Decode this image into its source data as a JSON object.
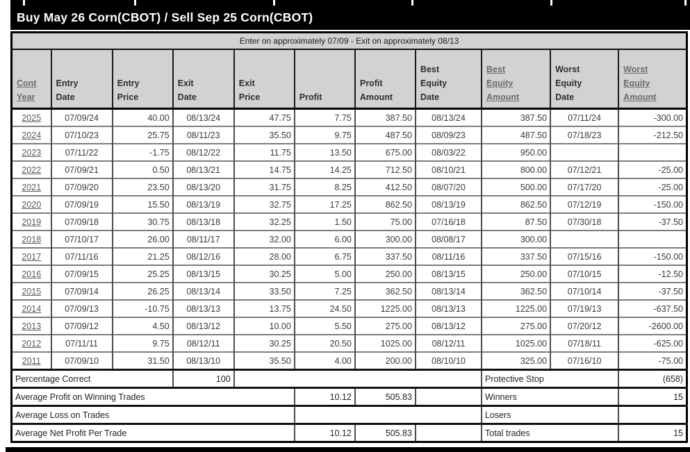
{
  "title": "Buy May 26 Corn(CBOT) / Sell Sep 25 Corn(CBOT)",
  "subtitle": "Enter on approximately 07/09 - Exit on approximately 08/13",
  "colors": {
    "title_bg": "#000000",
    "title_text": "#ffffff",
    "header_bg": "#d2d2d2",
    "link_text": "#6b6b6b",
    "cell_text": "#333333"
  },
  "table": {
    "columns": [
      {
        "id": "cont-year",
        "lines": [
          "Cont",
          "Year"
        ],
        "underlined": true
      },
      {
        "id": "entry-date",
        "lines": [
          "Entry",
          "Date"
        ],
        "underlined": false
      },
      {
        "id": "entry-price",
        "lines": [
          "Entry",
          "Price"
        ],
        "underlined": false
      },
      {
        "id": "exit-date",
        "lines": [
          "Exit",
          "Date"
        ],
        "underlined": false
      },
      {
        "id": "exit-price",
        "lines": [
          "Exit",
          "Price"
        ],
        "underlined": false
      },
      {
        "id": "profit",
        "lines": [
          "Profit"
        ],
        "underlined": false
      },
      {
        "id": "profit-amount",
        "lines": [
          "Profit",
          "Amount"
        ],
        "underlined": false
      },
      {
        "id": "best-equity-date",
        "lines": [
          "Best",
          "Equity",
          "Date"
        ],
        "underlined": false
      },
      {
        "id": "best-equity-amount",
        "lines": [
          "Best",
          "Equity",
          "Amount"
        ],
        "underlined": true
      },
      {
        "id": "worst-equity-date",
        "lines": [
          "Worst",
          "Equity",
          "Date"
        ],
        "underlined": false
      },
      {
        "id": "worst-equity-amount",
        "lines": [
          "Worst",
          "Equity",
          "Amount"
        ],
        "underlined": true
      }
    ],
    "rows": [
      {
        "year": "2025",
        "entry_date": "07/09/24",
        "entry_price": "40.00",
        "exit_date": "08/13/24",
        "exit_price": "47.75",
        "profit": "7.75",
        "profit_amount": "387.50",
        "best_equity_date": "08/13/24",
        "best_equity_amount": "387.50",
        "worst_equity_date": "07/11/24",
        "worst_equity_amount": "-300.00"
      },
      {
        "year": "2024",
        "entry_date": "07/10/23",
        "entry_price": "25.75",
        "exit_date": "08/11/23",
        "exit_price": "35.50",
        "profit": "9.75",
        "profit_amount": "487.50",
        "best_equity_date": "08/09/23",
        "best_equity_amount": "487.50",
        "worst_equity_date": "07/18/23",
        "worst_equity_amount": "-212.50"
      },
      {
        "year": "2023",
        "entry_date": "07/11/22",
        "entry_price": "-1.75",
        "exit_date": "08/12/22",
        "exit_price": "11.75",
        "profit": "13.50",
        "profit_amount": "675.00",
        "best_equity_date": "08/03/22",
        "best_equity_amount": "950.00",
        "worst_equity_date": "",
        "worst_equity_amount": ""
      },
      {
        "year": "2022",
        "entry_date": "07/09/21",
        "entry_price": "0.50",
        "exit_date": "08/13/21",
        "exit_price": "14.75",
        "profit": "14.25",
        "profit_amount": "712.50",
        "best_equity_date": "08/10/21",
        "best_equity_amount": "800.00",
        "worst_equity_date": "07/12/21",
        "worst_equity_amount": "-25.00"
      },
      {
        "year": "2021",
        "entry_date": "07/09/20",
        "entry_price": "23.50",
        "exit_date": "08/13/20",
        "exit_price": "31.75",
        "profit": "8.25",
        "profit_amount": "412.50",
        "best_equity_date": "08/07/20",
        "best_equity_amount": "500.00",
        "worst_equity_date": "07/17/20",
        "worst_equity_amount": "-25.00"
      },
      {
        "year": "2020",
        "entry_date": "07/09/19",
        "entry_price": "15.50",
        "exit_date": "08/13/19",
        "exit_price": "32.75",
        "profit": "17.25",
        "profit_amount": "862.50",
        "best_equity_date": "08/13/19",
        "best_equity_amount": "862.50",
        "worst_equity_date": "07/12/19",
        "worst_equity_amount": "-150.00"
      },
      {
        "year": "2019",
        "entry_date": "07/09/18",
        "entry_price": "30.75",
        "exit_date": "08/13/18",
        "exit_price": "32.25",
        "profit": "1.50",
        "profit_amount": "75.00",
        "best_equity_date": "07/16/18",
        "best_equity_amount": "87.50",
        "worst_equity_date": "07/30/18",
        "worst_equity_amount": "-37.50"
      },
      {
        "year": "2018",
        "entry_date": "07/10/17",
        "entry_price": "26.00",
        "exit_date": "08/11/17",
        "exit_price": "32.00",
        "profit": "6.00",
        "profit_amount": "300.00",
        "best_equity_date": "08/08/17",
        "best_equity_amount": "300.00",
        "worst_equity_date": "",
        "worst_equity_amount": ""
      },
      {
        "year": "2017",
        "entry_date": "07/11/16",
        "entry_price": "21.25",
        "exit_date": "08/12/16",
        "exit_price": "28.00",
        "profit": "6.75",
        "profit_amount": "337.50",
        "best_equity_date": "08/11/16",
        "best_equity_amount": "337.50",
        "worst_equity_date": "07/15/16",
        "worst_equity_amount": "-150.00"
      },
      {
        "year": "2016",
        "entry_date": "07/09/15",
        "entry_price": "25.25",
        "exit_date": "08/13/15",
        "exit_price": "30.25",
        "profit": "5.00",
        "profit_amount": "250.00",
        "best_equity_date": "08/13/15",
        "best_equity_amount": "250.00",
        "worst_equity_date": "07/10/15",
        "worst_equity_amount": "-12.50"
      },
      {
        "year": "2015",
        "entry_date": "07/09/14",
        "entry_price": "26.25",
        "exit_date": "08/13/14",
        "exit_price": "33.50",
        "profit": "7.25",
        "profit_amount": "362.50",
        "best_equity_date": "08/13/14",
        "best_equity_amount": "362.50",
        "worst_equity_date": "07/10/14",
        "worst_equity_amount": "-37.50"
      },
      {
        "year": "2014",
        "entry_date": "07/09/13",
        "entry_price": "-10.75",
        "exit_date": "08/13/13",
        "exit_price": "13.75",
        "profit": "24.50",
        "profit_amount": "1225.00",
        "best_equity_date": "08/13/13",
        "best_equity_amount": "1225.00",
        "worst_equity_date": "07/19/13",
        "worst_equity_amount": "-637.50"
      },
      {
        "year": "2013",
        "entry_date": "07/09/12",
        "entry_price": "4.50",
        "exit_date": "08/13/12",
        "exit_price": "10.00",
        "profit": "5.50",
        "profit_amount": "275.00",
        "best_equity_date": "08/13/12",
        "best_equity_amount": "275.00",
        "worst_equity_date": "07/20/12",
        "worst_equity_amount": "-2600.00"
      },
      {
        "year": "2012",
        "entry_date": "07/11/11",
        "entry_price": "9.75",
        "exit_date": "08/12/11",
        "exit_price": "30.25",
        "profit": "20.50",
        "profit_amount": "1025.00",
        "best_equity_date": "08/12/11",
        "best_equity_amount": "1025.00",
        "worst_equity_date": "07/18/11",
        "worst_equity_amount": "-625.00"
      },
      {
        "year": "2011",
        "entry_date": "07/09/10",
        "entry_price": "31.50",
        "exit_date": "08/13/10",
        "exit_price": "35.50",
        "profit": "4.00",
        "profit_amount": "200.00",
        "best_equity_date": "08/10/10",
        "best_equity_amount": "325.00",
        "worst_equity_date": "07/16/10",
        "worst_equity_amount": "-75.00"
      }
    ],
    "summary": {
      "percentage_correct": {
        "label": "Percentage Correct",
        "value": "100"
      },
      "protective_stop": {
        "label": "Protective Stop",
        "value": "(658)"
      },
      "avg_profit_winning": {
        "label": "Average Profit on Winning Trades",
        "profit": "10.12",
        "amount": "505.83"
      },
      "winners": {
        "label": "Winners",
        "count": "15"
      },
      "avg_loss": {
        "label": "Average Loss on Trades",
        "profit": "",
        "amount": ""
      },
      "losers": {
        "label": "Losers",
        "count": ""
      },
      "avg_net": {
        "label": "Average Net Profit Per Trade",
        "profit": "10.12",
        "amount": "505.83"
      },
      "total_trades": {
        "label": "Total trades",
        "count": "15"
      }
    }
  }
}
